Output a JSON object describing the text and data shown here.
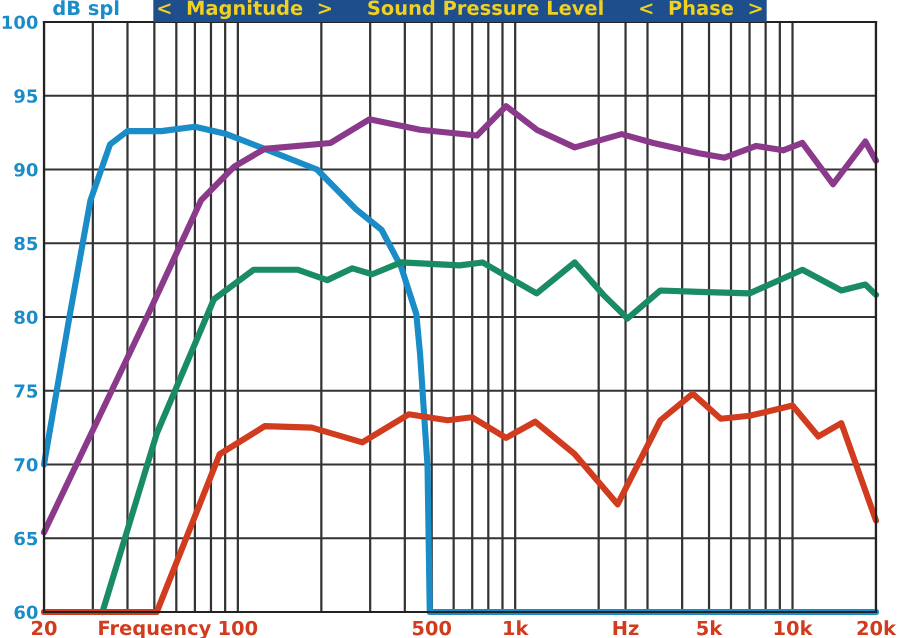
{
  "chart_data": {
    "type": "line",
    "title": "<  Magnitude  >     Sound Pressure Level     <  Phase  >",
    "ylabel": "dB spl",
    "log": "x",
    "xlim": [
      20,
      20000
    ],
    "ylim": [
      60,
      100
    ],
    "xticks": [
      20,
      {
        "value": 30,
        "label": null
      },
      {
        "value": 40,
        "label": null
      },
      {
        "value": 50,
        "label": "Frequency"
      },
      {
        "value": 60,
        "label": null
      },
      {
        "value": 70,
        "label": null
      },
      {
        "value": 80,
        "label": null
      },
      {
        "value": 90,
        "label": null
      },
      100,
      {
        "value": 200,
        "label": null
      },
      {
        "value": 300,
        "label": null
      },
      {
        "value": 400,
        "label": null
      },
      500,
      {
        "value": 600,
        "label": null
      },
      {
        "value": 700,
        "label": null
      },
      {
        "value": 800,
        "label": null
      },
      {
        "value": 900,
        "label": null
      },
      {
        "value": 1000,
        "label": "1k"
      },
      {
        "value": 2000,
        "label": null
      },
      {
        "value": 2500,
        "label": "Hz"
      },
      {
        "value": 3000,
        "label": null
      },
      {
        "value": 4000,
        "label": null
      },
      {
        "value": 5000,
        "label": "5k"
      },
      {
        "value": 6000,
        "label": null
      },
      {
        "value": 7000,
        "label": null
      },
      {
        "value": 8000,
        "label": null
      },
      {
        "value": 9000,
        "label": null
      },
      {
        "value": 10000,
        "label": "10k"
      },
      {
        "value": 20000,
        "label": "20k"
      }
    ],
    "yticks": [
      60,
      65,
      70,
      75,
      80,
      85,
      90,
      95,
      100
    ],
    "grid": true,
    "line_style": "solid",
    "marker": "none",
    "series": [
      {
        "color": "#1a8cc8",
        "x": [
          20,
          24.7,
          29.4,
          34.6,
          40,
          53,
          70,
          91,
          125,
          193,
          267,
          330,
          388,
          440,
          454,
          483,
          492,
          1000,
          20000
        ],
        "values": [
          70,
          80,
          87.9,
          91.7,
          92.6,
          92.6,
          92.9,
          92.4,
          91.4,
          90.0,
          87.3,
          85.9,
          83.4,
          80.2,
          77.5,
          69.9,
          60,
          60,
          60
        ]
      },
      {
        "color": "#8b3a8b",
        "x": [
          20,
          47,
          73.6,
          97,
          125,
          216,
          298,
          454,
          728,
          927,
          1195,
          1640,
          2420,
          3150,
          4600,
          5690,
          7400,
          9250,
          10860,
          14000,
          18300,
          20000
        ],
        "values": [
          65.4,
          80,
          87.9,
          90.2,
          91.4,
          91.8,
          93.4,
          92.7,
          92.3,
          94.3,
          92.7,
          91.5,
          92.4,
          91.8,
          91.1,
          90.8,
          91.6,
          91.3,
          91.8,
          89.0,
          91.9,
          90.6
        ]
      },
      {
        "color": "#1a8c64",
        "x": [
          32.5,
          51,
          82,
          114,
          165,
          210,
          259,
          305,
          388,
          630,
          762,
          1195,
          1640,
          2080,
          2540,
          3340,
          4600,
          7000,
          10860,
          15000,
          18300,
          20000
        ],
        "values": [
          60,
          72.1,
          81.2,
          83.2,
          83.2,
          82.5,
          83.3,
          82.9,
          83.7,
          83.5,
          83.7,
          81.6,
          83.7,
          81.5,
          79.9,
          81.8,
          81.7,
          81.6,
          83.2,
          81.8,
          82.2,
          81.5
        ]
      },
      {
        "color": "#d23c1e",
        "x": [
          20,
          51,
          86,
          125,
          185,
          281,
          413,
          570,
          700,
          927,
          1180,
          1640,
          2340,
          3340,
          4370,
          5510,
          7000,
          10000,
          12400,
          15000,
          20000
        ],
        "values": [
          60,
          60,
          70.7,
          72.6,
          72.5,
          71.5,
          73.4,
          73.0,
          73.2,
          71.8,
          72.9,
          70.7,
          67.3,
          73.0,
          74.8,
          73.1,
          73.3,
          74.0,
          71.9,
          72.8,
          66.2
        ]
      }
    ]
  }
}
